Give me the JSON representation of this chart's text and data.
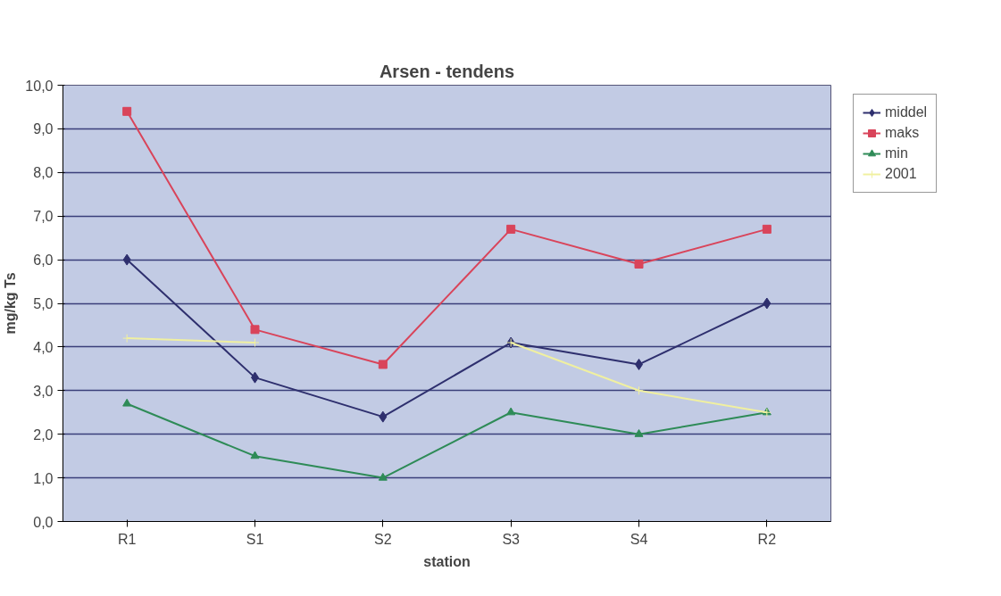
{
  "chart_data": {
    "type": "line",
    "title": "Arsen - tendens",
    "xlabel": "station",
    "ylabel": "mg/kg Ts",
    "categories": [
      "R1",
      "S1",
      "S2",
      "S3",
      "S4",
      "R2"
    ],
    "series": [
      {
        "name": "middel",
        "color": "#2e2f6e",
        "marker": "diamond",
        "values": [
          6.0,
          3.3,
          2.4,
          4.1,
          3.6,
          5.0
        ]
      },
      {
        "name": "maks",
        "color": "#d9445a",
        "marker": "square",
        "values": [
          9.4,
          4.4,
          3.6,
          6.7,
          5.9,
          6.7
        ]
      },
      {
        "name": "min",
        "color": "#2e8b57",
        "marker": "triangle",
        "values": [
          2.7,
          1.5,
          1.0,
          2.5,
          2.0,
          2.5
        ]
      },
      {
        "name": "2001",
        "color": "#f0f0a0",
        "marker": "cross",
        "values": [
          4.2,
          4.1,
          null,
          4.1,
          3.0,
          2.5
        ]
      }
    ],
    "ylim": [
      0,
      10
    ],
    "yticks": [
      {
        "value": 0,
        "label": "0,0"
      },
      {
        "value": 1,
        "label": "1,0"
      },
      {
        "value": 2,
        "label": "2,0"
      },
      {
        "value": 3,
        "label": "3,0"
      },
      {
        "value": 4,
        "label": "4,0"
      },
      {
        "value": 5,
        "label": "5,0"
      },
      {
        "value": 6,
        "label": "6,0"
      },
      {
        "value": 7,
        "label": "7,0"
      },
      {
        "value": 8,
        "label": "8,0"
      },
      {
        "value": 9,
        "label": "9,0"
      },
      {
        "value": 10,
        "label": "10,0"
      }
    ],
    "grid": "y",
    "legend": "right"
  }
}
